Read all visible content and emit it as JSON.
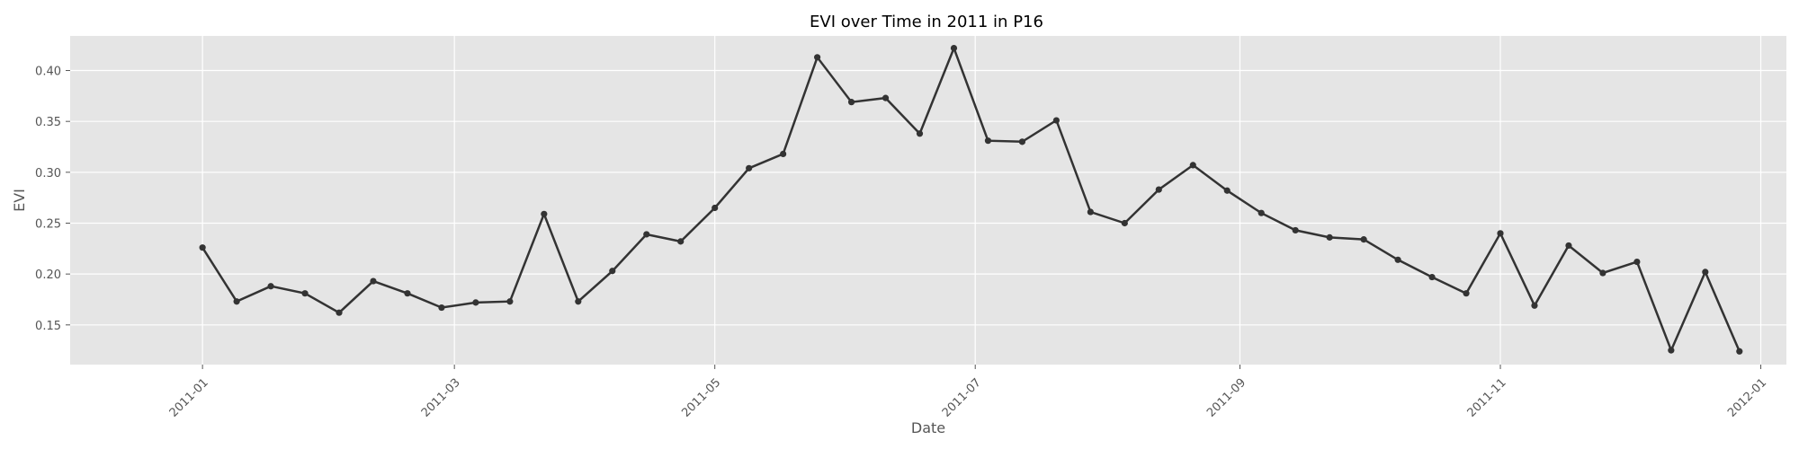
{
  "chart_data": {
    "type": "line",
    "title": "EVI over Time in 2011 in P16",
    "xlabel": "Date",
    "ylabel": "EVI",
    "x_ticks": [
      "2011-01",
      "2011-03",
      "2011-05",
      "2011-07",
      "2011-09",
      "2011-11",
      "2012-01"
    ],
    "y_ticks": [
      "0.15",
      "0.20",
      "0.25",
      "0.30",
      "0.35",
      "0.40"
    ],
    "xlim": [
      "2010-12-01",
      "2012-01-07"
    ],
    "ylim": [
      0.111,
      0.434
    ],
    "grid": true,
    "line_color": "#333333",
    "background_color": "#e5e5e5",
    "series": [
      {
        "x": [
          "2011-01-01",
          "2011-01-09",
          "2011-01-17",
          "2011-01-25",
          "2011-02-02",
          "2011-02-10",
          "2011-02-18",
          "2011-02-26",
          "2011-03-06",
          "2011-03-14",
          "2011-03-22",
          "2011-03-30",
          "2011-04-07",
          "2011-04-15",
          "2011-04-23",
          "2011-05-01",
          "2011-05-09",
          "2011-05-17",
          "2011-05-25",
          "2011-06-02",
          "2011-06-10",
          "2011-06-18",
          "2011-06-26",
          "2011-07-04",
          "2011-07-12",
          "2011-07-20",
          "2011-07-28",
          "2011-08-05",
          "2011-08-13",
          "2011-08-21",
          "2011-08-29",
          "2011-09-06",
          "2011-09-14",
          "2011-09-22",
          "2011-09-30",
          "2011-10-08",
          "2011-10-16",
          "2011-10-24",
          "2011-11-01",
          "2011-11-09",
          "2011-11-17",
          "2011-11-25",
          "2011-12-03",
          "2011-12-11",
          "2011-12-19",
          "2011-12-27"
        ],
        "values": [
          0.226,
          0.173,
          0.188,
          0.181,
          0.162,
          0.193,
          0.181,
          0.167,
          0.172,
          0.173,
          0.259,
          0.173,
          0.203,
          0.239,
          0.232,
          0.265,
          0.304,
          0.318,
          0.413,
          0.369,
          0.373,
          0.338,
          0.422,
          0.331,
          0.33,
          0.351,
          0.261,
          0.25,
          0.283,
          0.307,
          0.282,
          0.26,
          0.243,
          0.236,
          0.234,
          0.214,
          0.197,
          0.181,
          0.24,
          0.169,
          0.228,
          0.201,
          0.212,
          0.125,
          0.202,
          0.124
        ]
      }
    ]
  }
}
